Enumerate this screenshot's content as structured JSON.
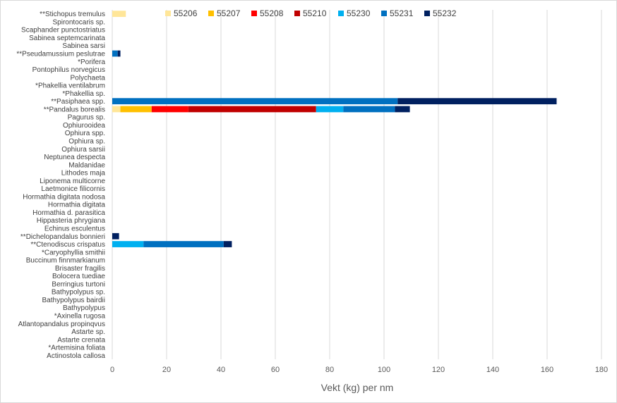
{
  "chart_data": {
    "type": "bar",
    "orientation": "horizontal",
    "stacked": true,
    "title": "",
    "xlabel": "Vekt (kg) per nm",
    "ylabel": "",
    "xlim": [
      0,
      180
    ],
    "x_ticks": [
      0,
      20,
      40,
      60,
      80,
      100,
      120,
      140,
      160,
      180
    ],
    "grid": "vertical",
    "legend_position": "top",
    "categories": [
      "**Stichopus tremulus",
      "Spirontocaris sp.",
      "Scaphander punctostriatus",
      "Sabinea septemcarinata",
      "Sabinea sarsi",
      "**Pseudamussium peslutrae",
      "*Porifera",
      "Pontophilus norvegicus",
      "Polychaeta",
      "*Phakellia ventilabrum",
      "*Phakellia sp.",
      "**Pasiphaea spp.",
      "**Pandalus borealis",
      "Pagurus sp.",
      "Ophiurooidea",
      "Ophiura spp.",
      "Ophiura sp.",
      "Ophiura sarsii",
      "Neptunea despecta",
      "Maldanidae",
      "Lithodes maja",
      "Liponema multicorne",
      "Laetmonice filicornis",
      "Hormathia digitata nodosa",
      "Hormathia digitata",
      "Hormathia d. parasitica",
      "Hippasteria phrygiana",
      "Echinus esculentus",
      "**Dichelopandalus bonnieri",
      "**Ctenodiscus crispatus",
      "*Caryophyllia smithii",
      "Buccinum finnmarkianum",
      "Brisaster fragilis",
      "Bolocera tuediae",
      "Berringius turtoni",
      "Bathypolypus sp.",
      "Bathypolypus bairdii",
      "Bathypolypus",
      "*Axinella rugosa",
      "Atlantopandalus propinqvus",
      "Astarte sp.",
      "Astarte crenata",
      "*Artemisina foliata",
      "Actinostola callosa"
    ],
    "series": [
      {
        "name": "55206",
        "color": "#ffe699",
        "values": [
          5,
          0,
          0,
          0,
          0,
          0,
          0,
          0,
          0,
          0,
          0,
          0,
          3,
          0,
          0,
          0,
          0,
          0,
          0,
          0,
          0,
          0,
          0,
          0,
          0,
          0,
          0,
          0,
          0,
          0,
          0,
          0,
          0,
          0,
          0,
          0,
          0,
          0,
          0,
          0,
          0,
          0,
          0,
          0
        ]
      },
      {
        "name": "55207",
        "color": "#ffc000",
        "values": [
          0,
          0,
          0,
          0,
          0,
          0,
          0,
          0,
          0,
          0,
          0,
          0,
          11.5,
          0,
          0,
          0,
          0,
          0,
          0,
          0,
          0,
          0,
          0,
          0,
          0,
          0,
          0,
          0,
          0,
          0,
          0,
          0,
          0,
          0,
          0,
          0,
          0,
          0,
          0,
          0,
          0,
          0,
          0,
          0
        ]
      },
      {
        "name": "55208",
        "color": "#ff0000",
        "values": [
          0,
          0,
          0,
          0,
          0,
          0,
          0,
          0,
          0,
          0,
          0,
          0,
          13.5,
          0,
          0,
          0,
          0,
          0,
          0,
          0,
          0,
          0,
          0,
          0,
          0,
          0,
          0,
          0,
          0,
          0,
          0,
          0,
          0,
          0,
          0,
          0,
          0,
          0,
          0,
          0,
          0,
          0,
          0,
          0
        ]
      },
      {
        "name": "55210",
        "color": "#c00000",
        "values": [
          0,
          0,
          0,
          0,
          0,
          0,
          0,
          0,
          0,
          0,
          0,
          0,
          47,
          0,
          0,
          0,
          0,
          0,
          0,
          0,
          0,
          0,
          0,
          0,
          0,
          0,
          0,
          0,
          0,
          0,
          0,
          0,
          0,
          0,
          0,
          0,
          0,
          0,
          0,
          0,
          0,
          0,
          0,
          0
        ]
      },
      {
        "name": "55230",
        "color": "#00b0f0",
        "values": [
          0,
          0,
          0,
          0,
          0,
          0,
          0,
          0,
          0,
          0,
          0,
          0,
          10,
          0,
          0,
          0,
          0,
          0,
          0,
          0,
          0,
          0,
          0,
          0,
          0,
          0,
          0,
          0,
          0,
          11.5,
          0,
          0,
          0,
          0,
          0,
          0,
          0,
          0,
          0,
          0,
          0,
          0,
          0,
          0
        ]
      },
      {
        "name": "55231",
        "color": "#0070c0",
        "values": [
          0,
          0,
          0,
          0,
          0,
          2,
          0,
          0,
          0,
          0,
          0,
          105,
          19,
          0,
          0,
          0,
          0,
          0,
          0,
          0,
          0,
          0,
          0,
          0,
          0,
          0,
          0,
          0,
          0,
          29.5,
          0,
          0,
          0,
          0,
          0,
          0,
          0,
          0,
          0,
          0,
          0,
          0,
          0,
          0
        ]
      },
      {
        "name": "55232",
        "color": "#002060",
        "values": [
          0,
          0,
          0,
          0,
          0,
          1,
          0,
          0,
          0,
          0,
          0,
          58.5,
          5.5,
          0,
          0,
          0,
          0,
          0,
          0,
          0,
          0,
          0,
          0,
          0,
          0,
          0,
          0,
          0,
          2.5,
          3,
          0,
          0,
          0,
          0,
          0,
          0,
          0,
          0,
          0,
          0,
          0,
          0,
          0,
          0
        ]
      }
    ]
  }
}
